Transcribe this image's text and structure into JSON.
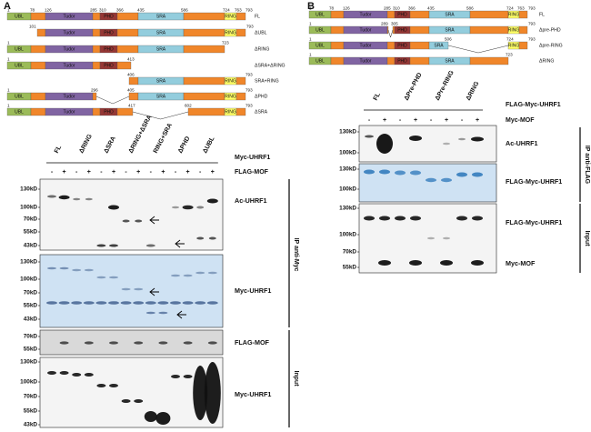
{
  "panel_a": {
    "label": "A",
    "diagram": {
      "domains": [
        "UBL",
        "Tudor",
        "PHD",
        "SRA",
        "RING"
      ],
      "rows": [
        {
          "name": "FL",
          "numbers": [
            1,
            78,
            126,
            285,
            310,
            366,
            435,
            586,
            724,
            763,
            793
          ]
        },
        {
          "name": "ΔUBL",
          "numbers": [
            101,
            793
          ]
        },
        {
          "name": "ΔRING",
          "numbers": [
            1,
            723
          ]
        },
        {
          "name": "ΔSRA+ΔRING",
          "numbers": [
            1,
            413
          ]
        },
        {
          "name": "SRA+RING",
          "numbers": [
            406,
            793
          ]
        },
        {
          "name": "ΔPHD",
          "numbers": [
            1,
            296,
            405,
            793
          ]
        },
        {
          "name": "ΔSRA",
          "numbers": [
            1,
            417,
            602,
            793
          ]
        }
      ]
    },
    "blot": {
      "columns": [
        "FL",
        "ΔRING",
        "ΔSRA",
        "ΔRING+ΔSRA",
        "RING+SRA",
        "ΔPHD",
        "ΔUBL"
      ],
      "group_label": "Myc-UHRF1",
      "treatment_label": "FLAG-MOF",
      "treatment": [
        "-",
        "+",
        "-",
        "+",
        "-",
        "+",
        "-",
        "+",
        "-",
        "+",
        "-",
        "+",
        "-",
        "+"
      ],
      "panels": [
        {
          "markers": [
            "130kD",
            "100kD",
            "70kD",
            "55kD",
            "43kD"
          ],
          "bands": [
            "Ac-UHRF1"
          ]
        },
        {
          "markers": [
            "130kD",
            "100kD",
            "70kD",
            "55kD",
            "43kD"
          ],
          "bands": [
            "Myc-UHRF1"
          ]
        },
        {
          "markers": [
            "70kD",
            "55kD"
          ],
          "bands": [
            "FLAG-MOF"
          ]
        },
        {
          "markers": [
            "130kD",
            "100kD",
            "70kD",
            "55kD",
            "43kD"
          ],
          "bands": [
            "Myc-UHRF1"
          ]
        }
      ],
      "side_labels": [
        "IP anti-Myc",
        "Input"
      ]
    }
  },
  "panel_b": {
    "label": "B",
    "diagram": {
      "domains": [
        "UBL",
        "Tudor",
        "PHD",
        "SRA",
        "RING"
      ],
      "rows": [
        {
          "name": "FL",
          "numbers": [
            1,
            78,
            126,
            285,
            310,
            366,
            435,
            586,
            724,
            763,
            793
          ]
        },
        {
          "name": "Δpre-PHD",
          "numbers": [
            1,
            289,
            305,
            793
          ]
        },
        {
          "name": "Δpre-RING",
          "numbers": [
            1,
            506,
            724,
            793
          ]
        },
        {
          "name": "ΔRING",
          "numbers": [
            1,
            723
          ]
        }
      ]
    },
    "blot": {
      "columns": [
        "FL",
        "ΔPre-PHD",
        "ΔPre-RING",
        "ΔRING"
      ],
      "group_label": "FLAG-Myc-UHRF1",
      "treatment_label": "Myc-MOF",
      "treatment": [
        "-",
        "+",
        "-",
        "+",
        "-",
        "+",
        "-",
        "+"
      ],
      "panels": [
        {
          "markers": [
            "130kD",
            "100kD"
          ],
          "bands": [
            "Ac-UHRF1"
          ]
        },
        {
          "markers": [
            "130kD",
            "100kD"
          ],
          "bands": [
            "FLAG-Myc-UHRF1"
          ]
        },
        {
          "markers": [
            "130kD",
            "100kD",
            "70kD",
            "55kD"
          ],
          "bands": [
            "FLAG-Myc-UHRF1",
            "Myc-MOF"
          ]
        }
      ],
      "side_labels": [
        "IP anti-FLAG",
        "Input"
      ]
    }
  }
}
